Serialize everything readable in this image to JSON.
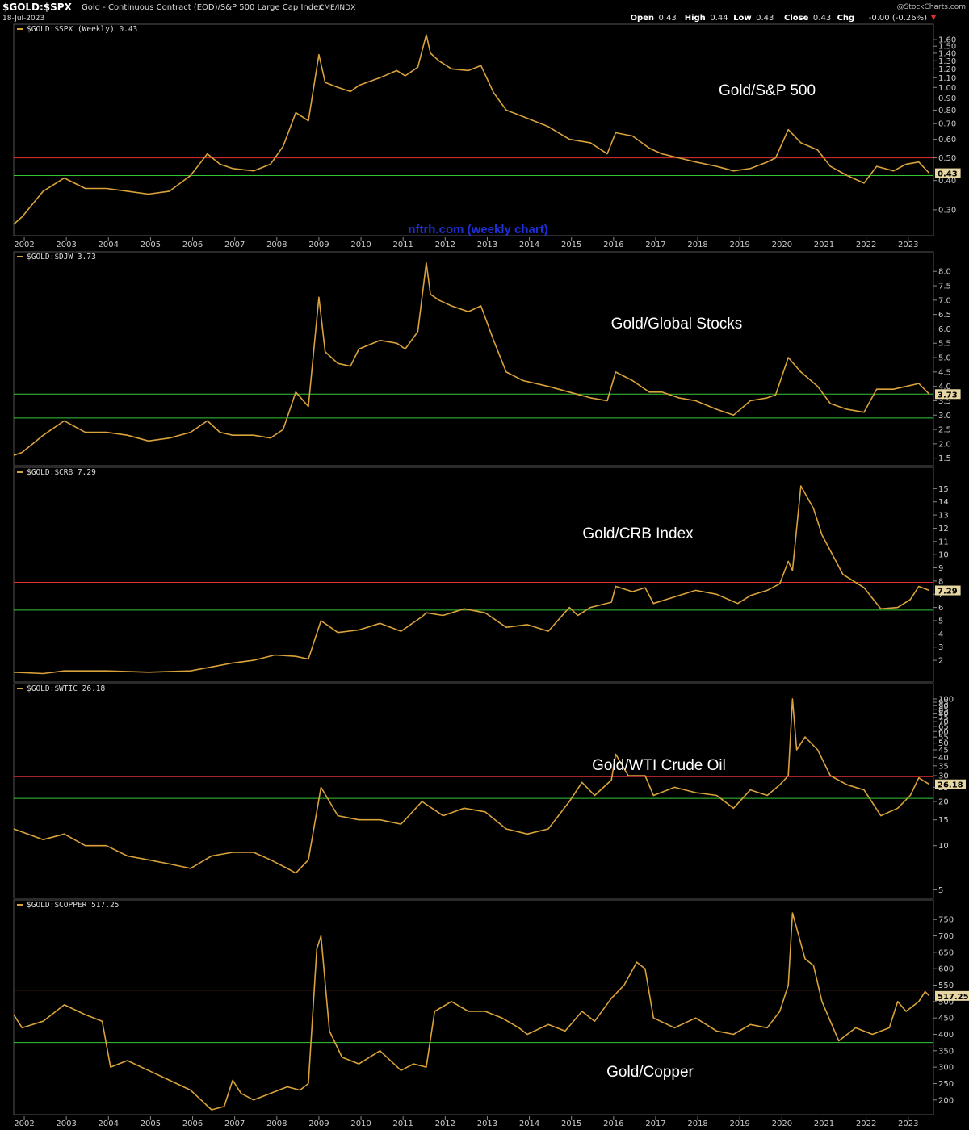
{
  "header": {
    "symbol": "$GOLD:$SPX",
    "description": "Gold - Continuous Contract (EOD)/S&P 500 Large Cap Index",
    "exchange": "CME/INDX",
    "date": "18-Jul-2023",
    "watermark": "@StockCharts.com",
    "ohlc": [
      {
        "label": "Open",
        "value": "0.43"
      },
      {
        "label": "High",
        "value": "0.44"
      },
      {
        "label": "Low",
        "value": "0.43"
      },
      {
        "label": "Close",
        "value": "0.43"
      },
      {
        "label": "Chg",
        "value": "-0.00 (-0.26%)"
      }
    ],
    "chg_arrow": "down"
  },
  "colors": {
    "background": "#000000",
    "line": "#d9a23a",
    "resistance": "#e03030",
    "support": "#35c835",
    "axis_text": "#cccccc",
    "watermark_text": "#1f2fd8"
  },
  "x_axis_years": [
    "2002",
    "2003",
    "2004",
    "2005",
    "2006",
    "2007",
    "2008",
    "2009",
    "2010",
    "2011",
    "2012",
    "2013",
    "2014",
    "2015",
    "2016",
    "2017",
    "2018",
    "2019",
    "2020",
    "2021",
    "2022",
    "2023"
  ],
  "chart_data": [
    {
      "type": "line",
      "legend": "$GOLD:$SPX (Weekly) 0.43",
      "annotation": "Gold/S&P 500",
      "watermark": "nftrh.com (weekly chart)",
      "last_value": "0.43",
      "scale": "log",
      "ylim": [
        0.24,
        1.72
      ],
      "yticks": [
        0.3,
        0.4,
        0.5,
        0.6,
        0.7,
        0.8,
        0.9,
        1.0,
        1.1,
        1.2,
        1.3,
        1.4,
        1.5,
        1.6
      ],
      "ytick_decimals": 2,
      "ytick_labels": [
        "0.30",
        "0.40",
        "0.50",
        "0.60",
        "0.70",
        "0.80",
        "0.90",
        "1.00",
        "1.10",
        "1.20",
        "1.30",
        "1.40",
        "1.50",
        "1.60"
      ],
      "support": [
        0.42
      ],
      "resistance": [
        0.5
      ],
      "x": [
        2001.8,
        2002.0,
        2002.5,
        2003.0,
        2003.5,
        2004.0,
        2004.5,
        2005.0,
        2005.5,
        2006.0,
        2006.4,
        2006.7,
        2007.0,
        2007.5,
        2007.9,
        2008.2,
        2008.5,
        2008.8,
        2009.05,
        2009.2,
        2009.5,
        2009.8,
        2010.0,
        2010.5,
        2010.9,
        2011.1,
        2011.4,
        2011.6,
        2011.7,
        2011.9,
        2012.2,
        2012.6,
        2012.9,
        2013.2,
        2013.5,
        2013.9,
        2014.5,
        2015.0,
        2015.5,
        2015.9,
        2016.1,
        2016.5,
        2016.9,
        2017.2,
        2017.6,
        2018.0,
        2018.5,
        2018.9,
        2019.3,
        2019.7,
        2019.9,
        2020.2,
        2020.5,
        2020.9,
        2021.2,
        2021.6,
        2022.0,
        2022.3,
        2022.7,
        2023.0,
        2023.3,
        2023.55
      ],
      "y": [
        0.26,
        0.28,
        0.36,
        0.41,
        0.37,
        0.37,
        0.36,
        0.35,
        0.36,
        0.42,
        0.52,
        0.47,
        0.45,
        0.44,
        0.47,
        0.56,
        0.78,
        0.72,
        1.38,
        1.05,
        1.0,
        0.96,
        1.02,
        1.1,
        1.18,
        1.12,
        1.22,
        1.68,
        1.4,
        1.3,
        1.2,
        1.18,
        1.24,
        0.95,
        0.8,
        0.75,
        0.68,
        0.6,
        0.58,
        0.52,
        0.64,
        0.62,
        0.55,
        0.52,
        0.5,
        0.48,
        0.46,
        0.44,
        0.45,
        0.48,
        0.5,
        0.66,
        0.58,
        0.54,
        0.46,
        0.42,
        0.39,
        0.46,
        0.44,
        0.47,
        0.48,
        0.43
      ]
    },
    {
      "type": "line",
      "legend": "$GOLD:$DJW 3.73",
      "annotation": "Gold/Global Stocks",
      "last_value": "3.73",
      "scale": "linear",
      "ylim": [
        1.35,
        8.4
      ],
      "yticks": [
        1.5,
        2.0,
        2.5,
        3.0,
        3.5,
        4.0,
        4.5,
        5.0,
        5.5,
        6.0,
        6.5,
        7.0,
        7.5,
        8.0
      ],
      "ytick_decimals": 1,
      "ytick_labels": [
        "1.5",
        "2.0",
        "2.5",
        "3.0",
        "3.5",
        "4.0",
        "4.5",
        "5.0",
        "5.5",
        "6.0",
        "6.5",
        "7.0",
        "7.5",
        "8.0"
      ],
      "support": [
        3.73,
        2.9
      ],
      "resistance": [],
      "x": [
        2001.8,
        2002.0,
        2002.5,
        2003.0,
        2003.5,
        2004.0,
        2004.5,
        2005.0,
        2005.5,
        2006.0,
        2006.4,
        2006.7,
        2007.0,
        2007.5,
        2007.9,
        2008.2,
        2008.5,
        2008.8,
        2009.05,
        2009.2,
        2009.5,
        2009.8,
        2010.0,
        2010.5,
        2010.9,
        2011.1,
        2011.4,
        2011.6,
        2011.7,
        2011.9,
        2012.2,
        2012.6,
        2012.9,
        2013.2,
        2013.5,
        2013.9,
        2014.5,
        2015.0,
        2015.5,
        2015.9,
        2016.1,
        2016.5,
        2016.9,
        2017.2,
        2017.6,
        2018.0,
        2018.5,
        2018.9,
        2019.3,
        2019.7,
        2019.9,
        2020.2,
        2020.5,
        2020.9,
        2021.2,
        2021.6,
        2022.0,
        2022.3,
        2022.7,
        2023.0,
        2023.3,
        2023.55
      ],
      "y": [
        1.6,
        1.7,
        2.3,
        2.8,
        2.4,
        2.4,
        2.3,
        2.1,
        2.2,
        2.4,
        2.8,
        2.4,
        2.3,
        2.3,
        2.2,
        2.5,
        3.8,
        3.3,
        7.1,
        5.2,
        4.8,
        4.7,
        5.3,
        5.6,
        5.5,
        5.3,
        5.9,
        8.3,
        7.2,
        7.0,
        6.8,
        6.6,
        6.8,
        5.6,
        4.5,
        4.2,
        4.0,
        3.8,
        3.6,
        3.5,
        4.5,
        4.2,
        3.8,
        3.8,
        3.6,
        3.5,
        3.2,
        3.0,
        3.5,
        3.6,
        3.7,
        5.0,
        4.5,
        4.0,
        3.4,
        3.2,
        3.1,
        3.9,
        3.9,
        4.0,
        4.1,
        3.73
      ]
    },
    {
      "type": "line",
      "legend": "$GOLD:$CRB 7.29",
      "annotation": "Gold/CRB Index",
      "last_value": "7.29",
      "scale": "linear",
      "ylim": [
        0.6,
        16.0
      ],
      "yticks": [
        2,
        3,
        4,
        5,
        6,
        7,
        8,
        9,
        10,
        11,
        12,
        13,
        14,
        15
      ],
      "ytick_decimals": 0,
      "ytick_labels": [
        "2",
        "3",
        "4",
        "5",
        "6",
        "7",
        "8",
        "9",
        "10",
        "11",
        "12",
        "13",
        "14",
        "15"
      ],
      "support": [
        5.8
      ],
      "resistance": [
        7.9
      ],
      "x": [
        2001.8,
        2002.5,
        2003.0,
        2004.0,
        2005.0,
        2006.0,
        2006.5,
        2007.0,
        2007.5,
        2008.0,
        2008.5,
        2008.8,
        2009.1,
        2009.5,
        2010.0,
        2010.5,
        2011.0,
        2011.5,
        2011.6,
        2012.0,
        2012.5,
        2013.0,
        2013.5,
        2014.0,
        2014.5,
        2015.0,
        2015.2,
        2015.5,
        2016.0,
        2016.1,
        2016.5,
        2016.8,
        2017.0,
        2017.5,
        2018.0,
        2018.5,
        2019.0,
        2019.3,
        2019.7,
        2020.0,
        2020.2,
        2020.3,
        2020.5,
        2020.8,
        2021.0,
        2021.5,
        2022.0,
        2022.4,
        2022.8,
        2023.1,
        2023.3,
        2023.55
      ],
      "y": [
        1.1,
        1.0,
        1.2,
        1.2,
        1.1,
        1.2,
        1.5,
        1.8,
        2.0,
        2.4,
        2.3,
        2.1,
        5.0,
        4.1,
        4.3,
        4.8,
        4.2,
        5.3,
        5.6,
        5.4,
        5.9,
        5.6,
        4.5,
        4.7,
        4.2,
        6.0,
        5.4,
        6.0,
        6.4,
        7.6,
        7.2,
        7.5,
        6.3,
        6.8,
        7.3,
        7.0,
        6.3,
        6.9,
        7.3,
        7.8,
        9.5,
        8.8,
        15.2,
        13.5,
        11.5,
        8.5,
        7.5,
        5.9,
        6.0,
        6.6,
        7.6,
        7.29
      ]
    },
    {
      "type": "line",
      "legend": "$GOLD:$WTIC 26.18",
      "annotation": "Gold/WTI Crude Oil",
      "last_value": "26.18",
      "scale": "log",
      "ylim": [
        4.6,
        112
      ],
      "yticks": [
        5,
        10,
        15,
        20,
        25,
        30,
        35,
        40,
        45,
        50,
        55,
        60,
        65,
        70,
        75,
        80,
        85,
        90,
        95,
        100
      ],
      "ytick_decimals": 0,
      "ytick_labels": [
        "5",
        "10",
        "15",
        "20",
        "25",
        "30",
        "35",
        "40",
        "45",
        "50",
        "55",
        "60",
        "65",
        "70",
        "75",
        "80",
        "85",
        "90",
        "95",
        "100"
      ],
      "support": [
        21
      ],
      "resistance": [
        29.5
      ],
      "x": [
        2001.8,
        2002.5,
        2003.0,
        2003.5,
        2004.0,
        2004.5,
        2005.0,
        2005.5,
        2006.0,
        2006.5,
        2007.0,
        2007.5,
        2007.9,
        2008.3,
        2008.5,
        2008.8,
        2009.1,
        2009.5,
        2010.0,
        2010.5,
        2011.0,
        2011.5,
        2012.0,
        2012.5,
        2013.0,
        2013.5,
        2014.0,
        2014.5,
        2015.0,
        2015.3,
        2015.6,
        2016.0,
        2016.1,
        2016.4,
        2016.8,
        2017.0,
        2017.5,
        2018.0,
        2018.5,
        2018.9,
        2019.3,
        2019.7,
        2020.0,
        2020.2,
        2020.3,
        2020.4,
        2020.6,
        2020.9,
        2021.2,
        2021.6,
        2022.0,
        2022.4,
        2022.8,
        2023.1,
        2023.3,
        2023.55
      ],
      "y": [
        13,
        11,
        12,
        10,
        10,
        8.5,
        8,
        7.5,
        7,
        8.5,
        9,
        9,
        8,
        7,
        6.5,
        8,
        25,
        16,
        15,
        15,
        14,
        20,
        16,
        18,
        17,
        13,
        12,
        13,
        20,
        27,
        22,
        28,
        42,
        30,
        30,
        22,
        25,
        23,
        22,
        18,
        24,
        22,
        26,
        30,
        100,
        45,
        55,
        45,
        30,
        26,
        24,
        16,
        18,
        22,
        29,
        26.18
      ]
    },
    {
      "type": "line",
      "legend": "$GOLD:$COPPER 517.25",
      "annotation": "Gold/Copper",
      "last_value": "517.25",
      "scale": "linear",
      "ylim": [
        165,
        785
      ],
      "yticks": [
        200,
        250,
        300,
        350,
        400,
        450,
        500,
        550,
        600,
        650,
        700,
        750
      ],
      "ytick_decimals": 0,
      "ytick_labels": [
        "200",
        "250",
        "300",
        "350",
        "400",
        "450",
        "500",
        "550",
        "600",
        "650",
        "700",
        "750"
      ],
      "support": [
        375
      ],
      "resistance": [
        535
      ],
      "x": [
        2001.8,
        2002.0,
        2002.5,
        2003.0,
        2003.5,
        2003.9,
        2004.1,
        2004.5,
        2005.0,
        2005.5,
        2006.0,
        2006.5,
        2006.8,
        2007.0,
        2007.2,
        2007.5,
        2007.9,
        2008.3,
        2008.6,
        2008.8,
        2009.0,
        2009.1,
        2009.3,
        2009.6,
        2010.0,
        2010.5,
        2011.0,
        2011.3,
        2011.6,
        2011.8,
        2012.2,
        2012.6,
        2013.0,
        2013.4,
        2013.8,
        2014.0,
        2014.5,
        2014.9,
        2015.3,
        2015.6,
        2016.0,
        2016.3,
        2016.6,
        2016.8,
        2017.0,
        2017.5,
        2018.0,
        2018.5,
        2018.9,
        2019.3,
        2019.7,
        2020.0,
        2020.2,
        2020.3,
        2020.6,
        2020.8,
        2021.0,
        2021.4,
        2021.8,
        2022.2,
        2022.6,
        2022.8,
        2023.0,
        2023.3,
        2023.45,
        2023.55
      ],
      "y": [
        460,
        420,
        440,
        490,
        460,
        440,
        300,
        320,
        290,
        260,
        230,
        170,
        180,
        260,
        220,
        200,
        220,
        240,
        230,
        250,
        660,
        700,
        410,
        330,
        310,
        350,
        290,
        310,
        300,
        470,
        500,
        470,
        470,
        450,
        420,
        400,
        430,
        410,
        470,
        440,
        510,
        550,
        620,
        600,
        450,
        420,
        450,
        410,
        400,
        430,
        420,
        470,
        550,
        770,
        630,
        610,
        500,
        380,
        420,
        400,
        420,
        500,
        470,
        500,
        530,
        517.25
      ]
    }
  ]
}
